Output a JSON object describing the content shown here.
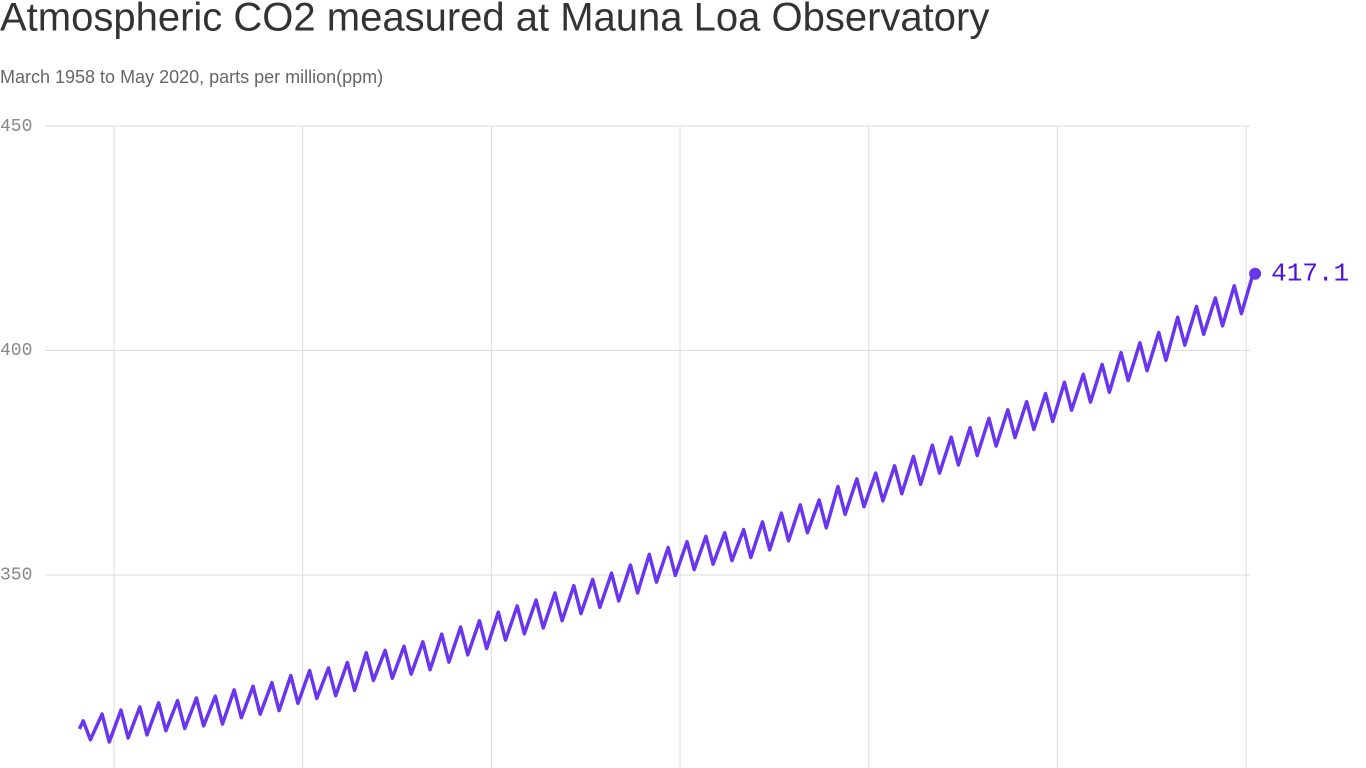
{
  "chart_data": {
    "type": "line",
    "title": "Atmospheric CO2 measured at Mauna Loa Observatory",
    "subtitle": "March 1958 to May 2020, parts per million(ppm)",
    "x": [
      1958.17,
      1958.37,
      1958.75,
      1959.37,
      1959.75,
      1960.37,
      1960.75,
      1961.37,
      1961.75,
      1962.37,
      1962.75,
      1963.37,
      1963.75,
      1964.37,
      1964.75,
      1965.37,
      1965.75,
      1966.37,
      1966.75,
      1967.37,
      1967.75,
      1968.37,
      1968.75,
      1969.37,
      1969.75,
      1970.37,
      1970.75,
      1971.37,
      1971.75,
      1972.37,
      1972.75,
      1973.37,
      1973.75,
      1974.37,
      1974.75,
      1975.37,
      1975.75,
      1976.37,
      1976.75,
      1977.37,
      1977.75,
      1978.37,
      1978.75,
      1979.37,
      1979.75,
      1980.37,
      1980.75,
      1981.37,
      1981.75,
      1982.37,
      1982.75,
      1983.37,
      1983.75,
      1984.37,
      1984.75,
      1985.37,
      1985.75,
      1986.37,
      1986.75,
      1987.37,
      1987.75,
      1988.37,
      1988.75,
      1989.37,
      1989.75,
      1990.37,
      1990.75,
      1991.37,
      1991.75,
      1992.37,
      1992.75,
      1993.37,
      1993.75,
      1994.37,
      1994.75,
      1995.37,
      1995.75,
      1996.37,
      1996.75,
      1997.37,
      1997.75,
      1998.37,
      1998.75,
      1999.37,
      1999.75,
      2000.37,
      2000.75,
      2001.37,
      2001.75,
      2002.37,
      2002.75,
      2003.37,
      2003.75,
      2004.37,
      2004.75,
      2005.37,
      2005.75,
      2006.37,
      2006.75,
      2007.37,
      2007.75,
      2008.37,
      2008.75,
      2009.37,
      2009.75,
      2010.37,
      2010.75,
      2011.37,
      2011.75,
      2012.37,
      2012.75,
      2013.37,
      2013.75,
      2014.37,
      2014.75,
      2015.37,
      2015.75,
      2016.37,
      2016.75,
      2017.37,
      2017.75,
      2018.37,
      2018.75,
      2019.37,
      2019.75,
      2020.37
    ],
    "series": [
      {
        "name": "CO2",
        "color": "#6a35ee",
        "values": [
          315.7,
          317.5,
          313.3,
          319.0,
          312.8,
          319.9,
          313.7,
          320.6,
          314.4,
          321.5,
          315.3,
          322.0,
          315.8,
          322.6,
          316.4,
          323.0,
          316.8,
          324.4,
          318.2,
          325.2,
          319.0,
          326.0,
          319.8,
          327.6,
          321.4,
          328.7,
          322.5,
          329.3,
          323.1,
          330.5,
          324.3,
          332.7,
          326.5,
          333.2,
          327.0,
          334.1,
          327.9,
          335.1,
          328.9,
          336.8,
          330.6,
          338.4,
          332.2,
          339.8,
          333.6,
          341.7,
          335.5,
          343.1,
          336.9,
          344.4,
          338.2,
          346.0,
          339.8,
          347.6,
          341.4,
          349.0,
          342.8,
          350.4,
          344.2,
          352.2,
          346.0,
          354.6,
          348.4,
          356.1,
          349.9,
          357.4,
          351.2,
          358.6,
          352.4,
          359.4,
          353.2,
          360.1,
          353.9,
          361.8,
          355.6,
          363.8,
          357.6,
          365.6,
          359.4,
          366.7,
          360.5,
          369.7,
          363.5,
          371.4,
          365.2,
          372.7,
          366.5,
          374.3,
          368.1,
          376.4,
          370.2,
          378.9,
          372.7,
          380.7,
          374.5,
          382.8,
          376.6,
          384.9,
          378.7,
          386.8,
          380.6,
          388.6,
          382.4,
          390.4,
          384.2,
          392.9,
          386.7,
          394.7,
          388.5,
          396.9,
          390.7,
          399.5,
          393.3,
          401.7,
          395.5,
          404.0,
          397.8,
          407.4,
          401.2,
          409.8,
          403.6,
          411.7,
          405.5,
          414.4,
          408.2,
          417.1
        ]
      }
    ],
    "xlim": [
      1956,
      2021
    ],
    "xticks": [
      1960,
      1970,
      1980,
      1990,
      2000,
      2010,
      2020
    ],
    "ylim": [
      307,
      450
    ],
    "yticks": [
      350,
      400,
      450
    ],
    "grid": true,
    "label_color": "#4b12e0"
  }
}
